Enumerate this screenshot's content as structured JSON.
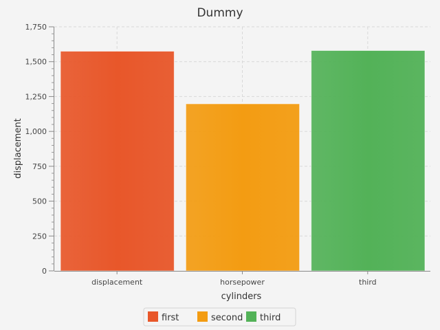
{
  "chart_data": {
    "type": "bar",
    "title": "Dummy",
    "xlabel": "cylinders",
    "ylabel": "displacement",
    "categories": [
      "displacement",
      "horsepower",
      "third"
    ],
    "series": [
      {
        "name": "first",
        "values": [
          1575,
          null,
          null
        ]
      },
      {
        "name": "second",
        "values": [
          null,
          1198,
          null
        ]
      },
      {
        "name": "third",
        "values": [
          null,
          null,
          1580
        ]
      }
    ],
    "ylim": [
      0,
      1750
    ],
    "yticks": [
      "0",
      "250",
      "500",
      "750",
      "1,000",
      "1,250",
      "1,500",
      "1,750"
    ],
    "grid": true,
    "legend": "bottom",
    "colors": {
      "first": "#e8572a",
      "second": "#f39c12",
      "third": "#53b258"
    }
  }
}
